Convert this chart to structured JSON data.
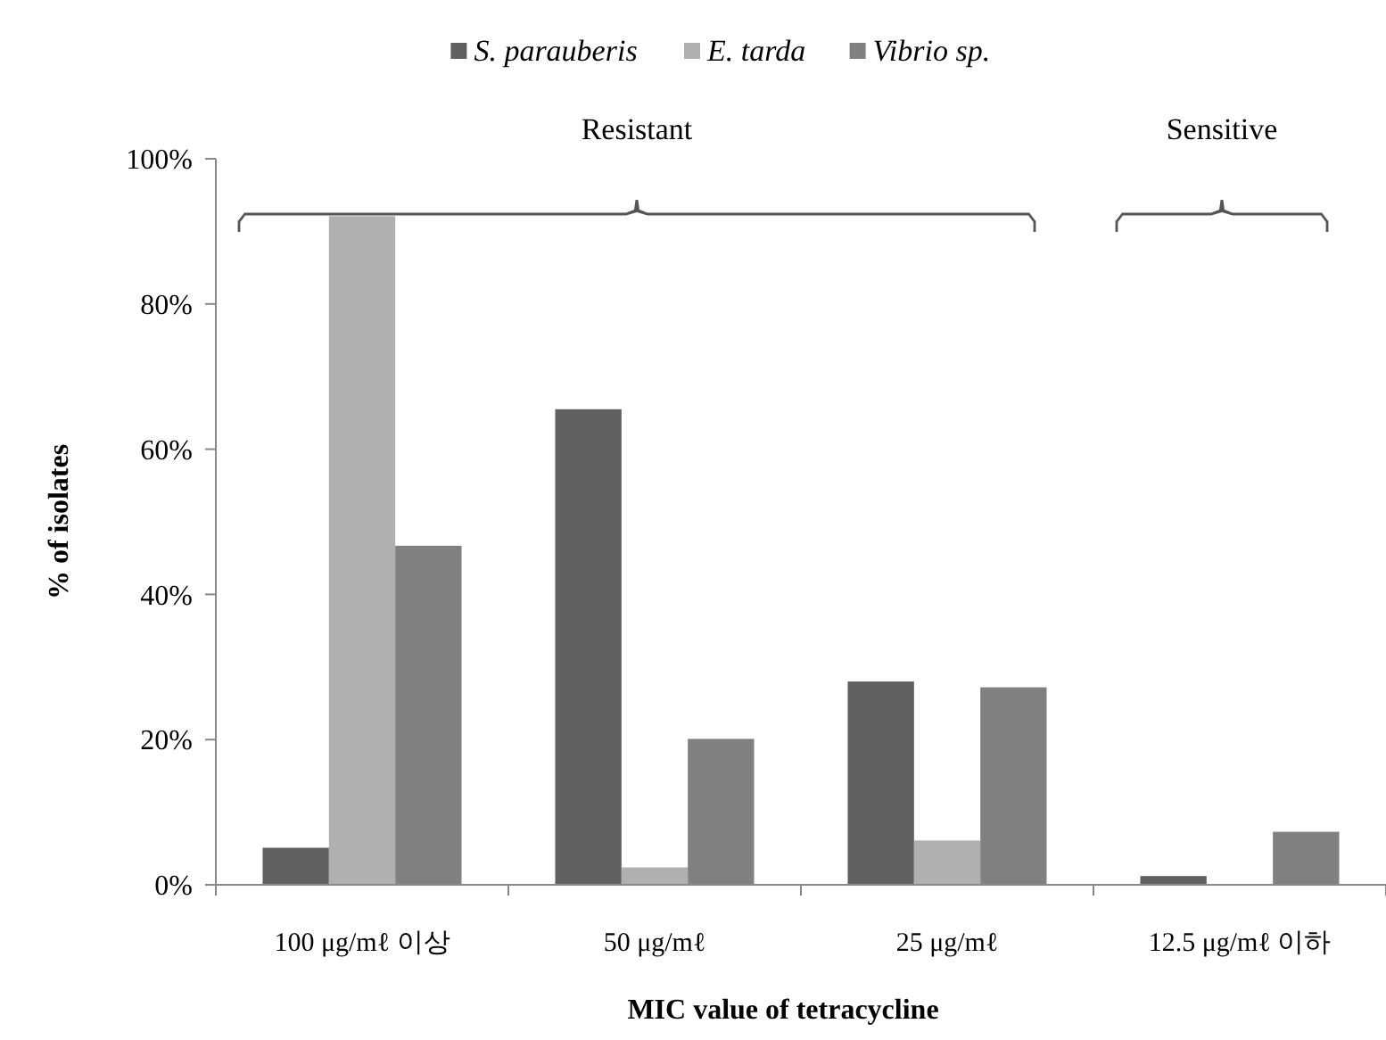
{
  "chart_data": {
    "type": "bar",
    "xlabel": "MIC value of tetracycline",
    "ylabel": "% of isolates",
    "categories": [
      "100 μg/mℓ 이상",
      "50 μg/mℓ",
      "25 μg/mℓ",
      "12.5 μg/mℓ  이하"
    ],
    "series": [
      {
        "name": "S. parauberis",
        "color": "#606060",
        "values": [
          5.1,
          65.5,
          28,
          1.2
        ]
      },
      {
        "name": "E. tarda",
        "color": "#b0b0b0",
        "values": [
          92.1,
          2.4,
          6.1,
          0
        ]
      },
      {
        "name": "Vibrio sp.",
        "color": "#808080",
        "values": [
          46.7,
          20.1,
          27.2,
          7.3
        ]
      }
    ],
    "ylim": [
      0,
      100
    ],
    "yticks": [
      {
        "value": 0,
        "label": "0%"
      },
      {
        "value": 20,
        "label": "20%"
      },
      {
        "value": 40,
        "label": "40%"
      },
      {
        "value": 60,
        "label": "60%"
      },
      {
        "value": 80,
        "label": "80%"
      },
      {
        "value": 100,
        "label": "100%"
      }
    ],
    "grid": false,
    "legend": "top",
    "annotations": [
      "Resistant",
      "Sensitive"
    ]
  }
}
